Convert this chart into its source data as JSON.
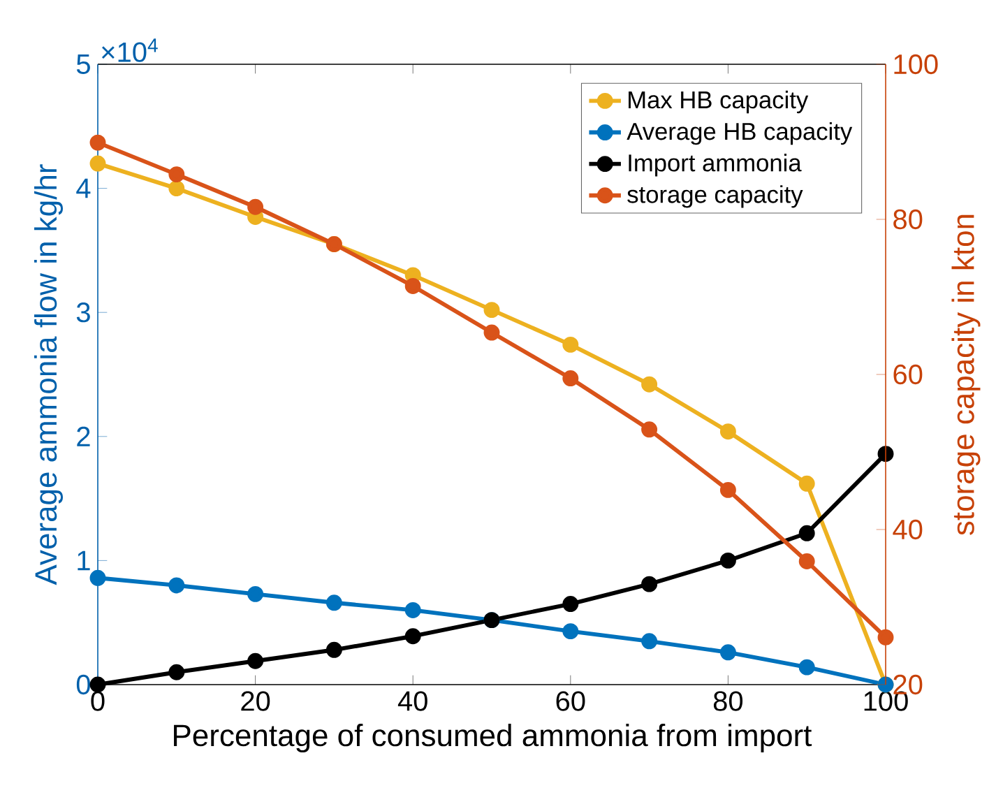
{
  "chart_data": {
    "type": "line",
    "xlabel": "Percentage of consumed ammonia from import",
    "ylabel": "Average ammonia flow in kg/hr",
    "y2label": "storage capacity in kton",
    "annotations": [
      "×10$^{4}$"
    ],
    "x": [
      0,
      10,
      20,
      30,
      40,
      50,
      60,
      70,
      80,
      90,
      100
    ],
    "series": [
      {
        "name": "Max HB capacity",
        "color": "#edb120",
        "axis": "y",
        "values": [
          4.2,
          4.0,
          3.77,
          3.55,
          3.3,
          3.02,
          2.74,
          2.42,
          2.04,
          1.62,
          0
        ]
      },
      {
        "name": "Average HB capacity",
        "color": "#0072bd",
        "axis": "y",
        "values": [
          0.86,
          0.8,
          0.73,
          0.66,
          0.6,
          0.52,
          0.43,
          0.35,
          0.26,
          0.14,
          0
        ]
      },
      {
        "name": "Import ammonia",
        "color": "#000000",
        "axis": "y",
        "values": [
          0,
          0.1,
          0.19,
          0.28,
          0.39,
          0.52,
          0.65,
          0.81,
          1.0,
          1.22,
          1.86
        ]
      },
      {
        "name": "storage capacity",
        "color": "#d95319",
        "axis": "y2",
        "values": [
          89.9,
          85.8,
          81.6,
          76.8,
          71.4,
          65.4,
          59.5,
          52.9,
          45.1,
          35.9,
          26.1
        ]
      }
    ],
    "xlim": [
      0,
      100
    ],
    "xticks": [
      0,
      20,
      40,
      60,
      80,
      100
    ],
    "ylim": [
      0,
      5
    ],
    "yticks": [
      0,
      1,
      2,
      3,
      4,
      5
    ],
    "y2lim": [
      20,
      100
    ],
    "y2ticks": [
      20,
      40,
      60,
      80,
      100
    ],
    "legend": "top right",
    "marker": "circle",
    "line_style": "solid"
  }
}
